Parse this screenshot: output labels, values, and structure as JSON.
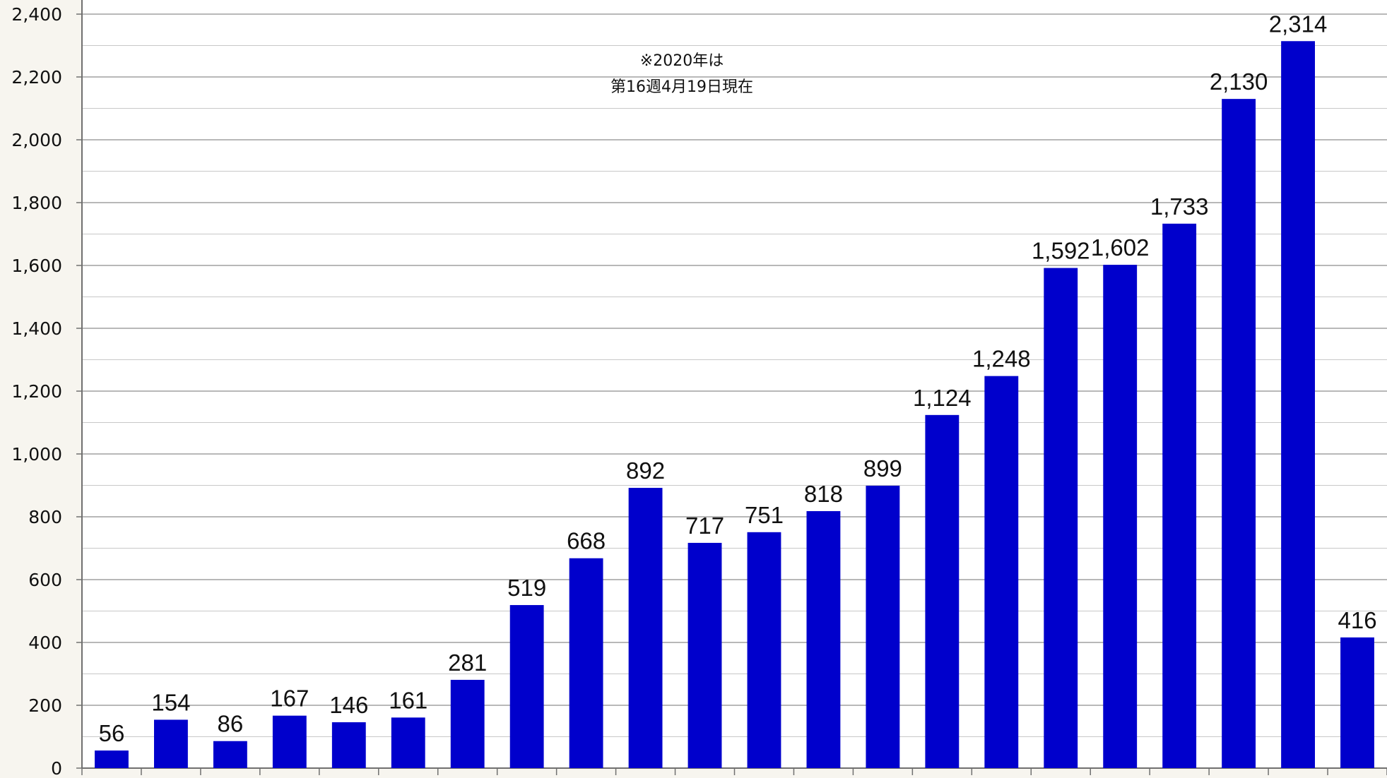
{
  "chart_data": {
    "type": "bar",
    "title": "",
    "xlabel": "",
    "ylabel": "",
    "ylim": [
      0,
      2400
    ],
    "yticks": [
      "0",
      "200",
      "400",
      "600",
      "800",
      "1,000",
      "1,200",
      "1,400",
      "1,600",
      "1,800",
      "2,000",
      "2,200",
      "2,400"
    ],
    "grid": true,
    "legend": "none",
    "annotation": [
      "※2020年は",
      "第16週4月19日現在"
    ],
    "colors": {
      "bar": "#0000cc",
      "label_default": "#111111",
      "label_highlight": "#ff0000",
      "grid": "#a0a0a0",
      "plot_background": "#ffffff"
    },
    "values": [
      56,
      154,
      86,
      167,
      146,
      161,
      281,
      519,
      668,
      892,
      717,
      751,
      818,
      899,
      1124,
      1248,
      1592,
      1602,
      1733,
      2130,
      2314,
      416
    ],
    "value_labels": [
      "56",
      "154",
      "86",
      "167",
      "146",
      "161",
      "281",
      "519",
      "668",
      "892",
      "717",
      "751",
      "818",
      "899",
      "1,124",
      "1,248",
      "1,592",
      "1,602",
      "1,733",
      "2,130",
      "2,314",
      "416"
    ],
    "highlight_index": 21
  }
}
